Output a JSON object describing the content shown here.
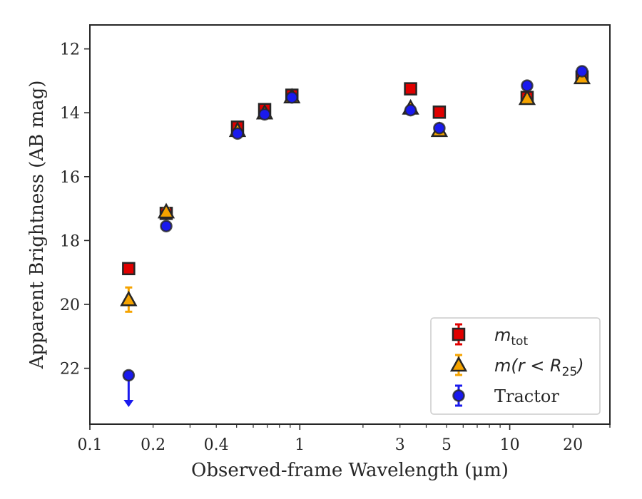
{
  "chart_data": {
    "type": "scatter",
    "xlabel": "Observed-frame Wavelength (μm)",
    "ylabel": "Apparent Brightness (AB mag)",
    "x_scale": "log",
    "xlim": [
      0.1,
      30
    ],
    "ylim": [
      23.75,
      11.25
    ],
    "y_inverted": true,
    "x_ticks": [
      0.1,
      0.2,
      0.4,
      1,
      3,
      5,
      10,
      20
    ],
    "x_tick_labels": [
      "0.1",
      "0.2",
      "0.4",
      "1",
      "3",
      "5",
      "10",
      "20"
    ],
    "y_ticks": [
      12,
      14,
      16,
      18,
      20,
      22
    ],
    "y_tick_labels": [
      "12",
      "14",
      "16",
      "18",
      "20",
      "22"
    ],
    "grid": false,
    "legend_position": "bottom-right",
    "series": [
      {
        "name": "m_tot",
        "legend_label": {
          "italic": "m",
          "sub": "tot"
        },
        "marker": "square",
        "color": "#e00000",
        "edge_color": "#262626",
        "errorbar_color": "#e00000",
        "points": [
          {
            "x": 0.153,
            "y": 18.88,
            "err": 0.08
          },
          {
            "x": 0.231,
            "y": 17.15,
            "err": 0.08
          },
          {
            "x": 0.505,
            "y": 14.45,
            "err": 0.1
          },
          {
            "x": 0.68,
            "y": 13.9,
            "err": 0.1
          },
          {
            "x": 0.917,
            "y": 13.45,
            "err": 0.1
          },
          {
            "x": 3.37,
            "y": 13.25,
            "err": 0.05
          },
          {
            "x": 4.62,
            "y": 13.98,
            "err": 0.05
          },
          {
            "x": 12.1,
            "y": 13.52,
            "err": 0.1
          },
          {
            "x": 22.1,
            "y": 12.88,
            "err": 0.1
          }
        ]
      },
      {
        "name": "m(r < R25)",
        "legend_label": {
          "italic": "m(r < R",
          "sub": "25",
          "tail": ")"
        },
        "marker": "triangle",
        "color": "#f5a300",
        "edge_color": "#262626",
        "errorbar_color": "#f5a300",
        "points": [
          {
            "x": 0.153,
            "y": 19.85,
            "err": 0.38
          },
          {
            "x": 0.231,
            "y": 17.1,
            "err": 0.1
          },
          {
            "x": 0.505,
            "y": 14.55,
            "err": 0.08
          },
          {
            "x": 0.68,
            "y": 14.0,
            "err": 0.08
          },
          {
            "x": 0.917,
            "y": 13.5,
            "err": 0.08
          },
          {
            "x": 3.37,
            "y": 13.85,
            "err": 0.05
          },
          {
            "x": 4.62,
            "y": 14.55,
            "err": 0.05
          },
          {
            "x": 12.1,
            "y": 13.55,
            "err": 0.08
          },
          {
            "x": 22.1,
            "y": 12.9,
            "err": 0.08
          }
        ]
      },
      {
        "name": "Tractor",
        "legend_label": {
          "text": "Tractor"
        },
        "marker": "circle",
        "color": "#1a1aee",
        "edge_color": "#262626",
        "errorbar_color": "#1a1aee",
        "points": [
          {
            "x": 0.153,
            "y": 22.22,
            "err": 0,
            "upper_limit": true
          },
          {
            "x": 0.231,
            "y": 17.55,
            "err": 0.05
          },
          {
            "x": 0.505,
            "y": 14.65,
            "err": 0.1
          },
          {
            "x": 0.68,
            "y": 14.05,
            "err": 0.1
          },
          {
            "x": 0.917,
            "y": 13.52,
            "err": 0.1
          },
          {
            "x": 3.37,
            "y": 13.92,
            "err": 0.05
          },
          {
            "x": 4.62,
            "y": 14.48,
            "err": 0.05
          },
          {
            "x": 12.1,
            "y": 13.15,
            "err": 0.08
          },
          {
            "x": 22.1,
            "y": 12.7,
            "err": 0.08
          }
        ]
      }
    ]
  }
}
